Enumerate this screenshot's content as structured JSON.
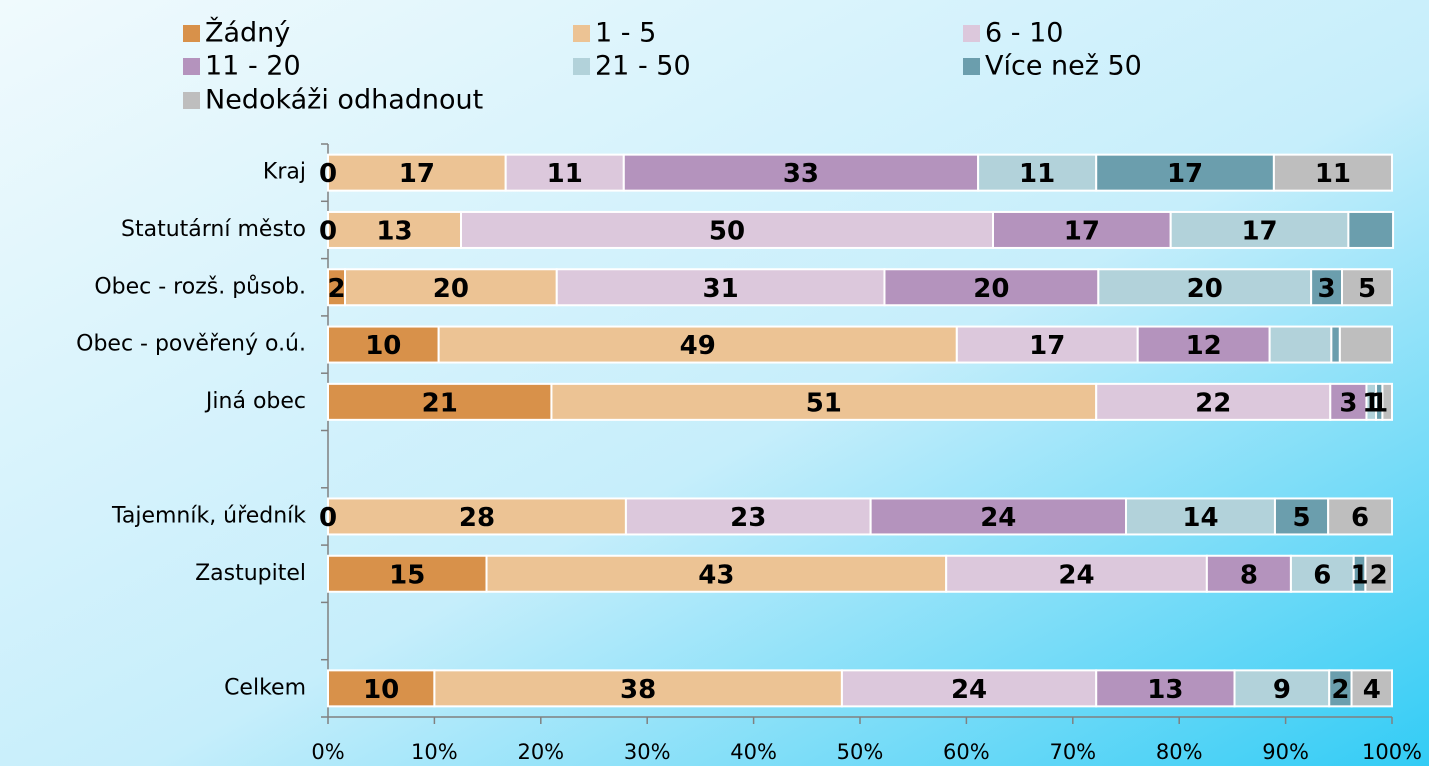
{
  "chart_data": {
    "type": "stacked_barh",
    "categories": [
      "Kraj",
      "Statutární město",
      "Obec - rozš. působ.",
      "Obec - pověřený o.ú.",
      "Jiná obec",
      null,
      "Tajemník, úředník",
      "Zastupitel",
      null,
      "Celkem"
    ],
    "series": [
      {
        "name": "Žádný",
        "color": "#d8914a",
        "values": [
          0,
          0,
          1.6,
          10.4,
          21,
          null,
          0,
          14.9,
          null,
          10
        ],
        "value_labels": [
          "0",
          "0",
          "2",
          "10",
          "21",
          null,
          "0",
          "15",
          null,
          "10"
        ]
      },
      {
        "name": "1 - 5",
        "color": "#ecc394",
        "values": [
          16.7,
          12.5,
          19.9,
          48.7,
          51.2,
          null,
          28,
          43.2,
          null,
          38.3
        ],
        "value_labels": [
          "17",
          "13",
          "20",
          "49",
          "51",
          null,
          "28",
          "43",
          null,
          "38"
        ]
      },
      {
        "name": "6 - 10",
        "color": "#dcc8dc",
        "values": [
          11.1,
          50,
          30.8,
          17,
          22,
          null,
          23,
          24.5,
          null,
          23.9
        ],
        "value_labels": [
          "11",
          "50",
          "31",
          "17",
          "22",
          null,
          "23",
          "24",
          null,
          "24"
        ]
      },
      {
        "name": "11 - 20",
        "color": "#b493bd",
        "values": [
          33.3,
          16.7,
          20.1,
          12.4,
          3.4,
          null,
          24,
          7.9,
          null,
          13
        ],
        "value_labels": [
          "33",
          "17",
          "20",
          "12",
          "3",
          null,
          "24",
          "8",
          null,
          "13"
        ]
      },
      {
        "name": "21 - 50",
        "color": "#b2d2da",
        "values": [
          11.1,
          16.7,
          20,
          5.8,
          0.9,
          null,
          14,
          5.9,
          null,
          8.9
        ],
        "value_labels": [
          "11",
          "17",
          "20",
          null,
          "1",
          null,
          "14",
          "6",
          null,
          "9"
        ]
      },
      {
        "name": "Více než 50",
        "color": "#6b9ead",
        "values": [
          16.7,
          4.2,
          2.9,
          0.8,
          0.6,
          null,
          5,
          1.1,
          null,
          2.1
        ],
        "value_labels": [
          "17",
          null,
          "3",
          null,
          "1",
          null,
          "5",
          "1",
          null,
          "2"
        ]
      },
      {
        "name": "Nedokáži odhadnout",
        "color": "#bebebe",
        "values": [
          11.1,
          0,
          4.7,
          4.9,
          0.9,
          null,
          6,
          2.5,
          null,
          3.8
        ],
        "value_labels": [
          "11",
          null,
          "5",
          null,
          null,
          null,
          "6",
          "2",
          null,
          "4"
        ]
      }
    ],
    "xlim": [
      0,
      100
    ],
    "xticks": [
      {
        "value": 0,
        "label": "0%"
      },
      {
        "value": 10,
        "label": "10%"
      },
      {
        "value": 20,
        "label": "20%"
      },
      {
        "value": 30,
        "label": "30%"
      },
      {
        "value": 40,
        "label": "40%"
      },
      {
        "value": 50,
        "label": "50%"
      },
      {
        "value": 60,
        "label": "60%"
      },
      {
        "value": 70,
        "label": "70%"
      },
      {
        "value": 80,
        "label": "80%"
      },
      {
        "value": 90,
        "label": "90%"
      },
      {
        "value": 100,
        "label": "100%"
      }
    ],
    "legend": "top"
  }
}
